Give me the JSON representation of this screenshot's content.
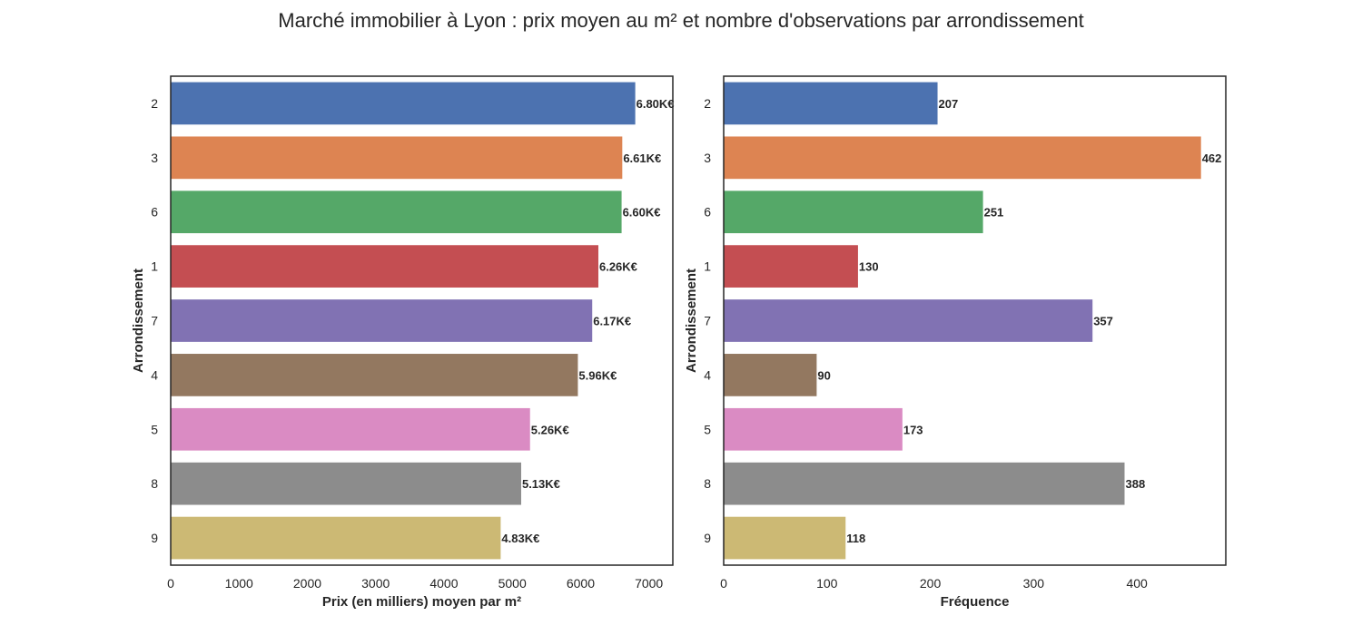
{
  "title": "Marché immobilier à Lyon : prix moyen au m² et nombre d'observations par arrondissement",
  "colors": [
    "#4c72b0",
    "#dd8452",
    "#55a868",
    "#c44e52",
    "#8172b3",
    "#937860",
    "#da8bc3",
    "#8c8c8c",
    "#ccb974"
  ],
  "chart_data": [
    {
      "type": "bar",
      "orientation": "horizontal",
      "categories": [
        "2",
        "3",
        "6",
        "1",
        "7",
        "4",
        "5",
        "8",
        "9"
      ],
      "values": [
        6800,
        6610,
        6600,
        6260,
        6170,
        5960,
        5260,
        5130,
        4830
      ],
      "data_labels": [
        "6.80K€",
        "6.61K€",
        "6.60K€",
        "6.26K€",
        "6.17K€",
        "5.96K€",
        "5.26K€",
        "5.13K€",
        "4.83K€"
      ],
      "xlabel": "Prix (en milliers) moyen par m²",
      "ylabel": "Arrondissement",
      "xlim": [
        0,
        7350
      ],
      "xticks": [
        0,
        1000,
        2000,
        3000,
        4000,
        5000,
        6000,
        7000
      ],
      "grid": false
    },
    {
      "type": "bar",
      "orientation": "horizontal",
      "categories": [
        "2",
        "3",
        "6",
        "1",
        "7",
        "4",
        "5",
        "8",
        "9"
      ],
      "values": [
        207,
        462,
        251,
        130,
        357,
        90,
        173,
        388,
        118
      ],
      "data_labels": [
        "207",
        "462",
        "251",
        "130",
        "357",
        "90",
        "173",
        "388",
        "118"
      ],
      "xlabel": "Fréquence",
      "ylabel": "Arrondissement",
      "xlim": [
        0,
        486
      ],
      "xticks": [
        0,
        100,
        200,
        300,
        400
      ],
      "grid": false
    }
  ]
}
